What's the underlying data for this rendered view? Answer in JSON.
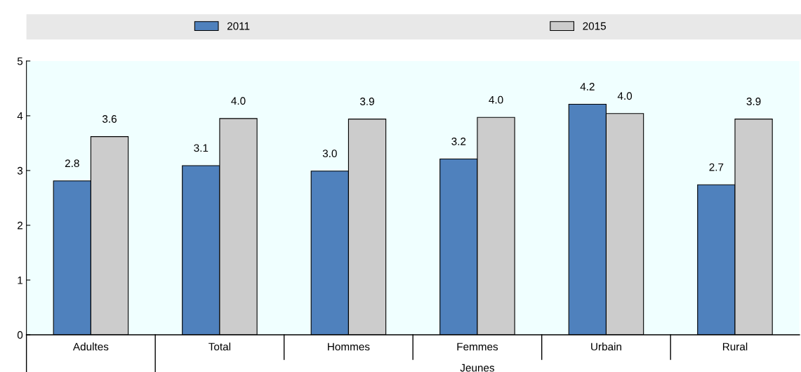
{
  "chart_data": {
    "type": "bar",
    "categories": [
      "Adultes",
      "Total",
      "Hommes",
      "Femmes",
      "Urbain",
      "Rural"
    ],
    "series": [
      {
        "name": "2011",
        "color": "#4f81bd",
        "values": [
          2.81,
          3.09,
          2.99,
          3.21,
          4.21,
          2.74
        ],
        "value_labels": [
          "2.8",
          "3.1",
          "3.0",
          "3.2",
          "4.2",
          "2.7"
        ]
      },
      {
        "name": "2015",
        "color": "#cccccc",
        "values": [
          3.62,
          3.95,
          3.94,
          3.97,
          4.04,
          3.94
        ],
        "value_labels": [
          "3.6",
          "4.0",
          "3.9",
          "4.0",
          "4.0",
          "3.9"
        ]
      }
    ],
    "ylim": [
      0,
      5
    ],
    "yticks": [
      0,
      1,
      2,
      3,
      4,
      5
    ],
    "grid": false,
    "legend": "top",
    "annotations": [
      "Jeunes"
    ]
  }
}
